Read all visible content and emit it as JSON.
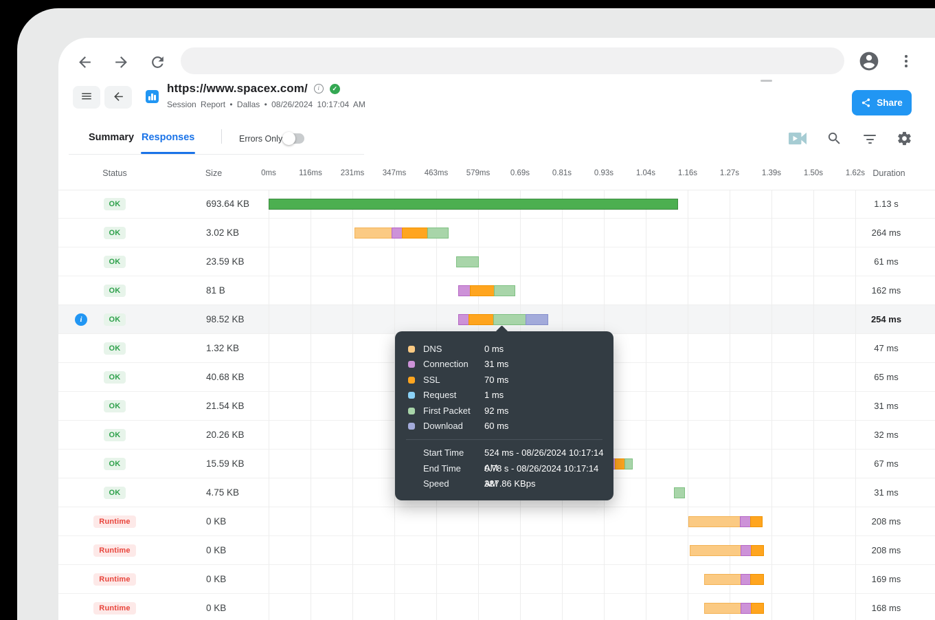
{
  "browser": {
    "address_value": "",
    "icons": [
      "back-arrow-icon",
      "forward-arrow-icon",
      "refresh-icon",
      "avatar-icon",
      "kebab-menu-icon"
    ]
  },
  "header": {
    "url": "https://www.spacex.com/",
    "subtitle": "Session Report • Dallas • 08/26/2024 10:17:04 AM",
    "share_label": "Share",
    "icons": [
      "hamburger-icon",
      "back-arrow-icon",
      "bar-chart-icon",
      "info-icon",
      "verified-check-icon",
      "share-icon"
    ]
  },
  "tabs": {
    "summary": "Summary",
    "responses": "Responses",
    "errors_only": "Errors Only",
    "errors_only_state": "off",
    "toolbar_icons": [
      "video-camera-icon",
      "search-icon",
      "filter-icon",
      "gear-icon"
    ]
  },
  "table": {
    "headers": {
      "status": "Status",
      "size": "Size",
      "duration": "Duration"
    },
    "time_ticks": [
      "0ms",
      "116ms",
      "231ms",
      "347ms",
      "463ms",
      "579ms",
      "0.69s",
      "0.81s",
      "0.93s",
      "1.04s",
      "1.16s",
      "1.27s",
      "1.39s",
      "1.50s",
      "1.62s"
    ],
    "rows": [
      {
        "status": "OK",
        "size": "693.64 KB",
        "duration": "1.13 s",
        "info": false,
        "highlight": false,
        "bar": {
          "start": 391,
          "segments": [
            [
              "content",
              596
            ]
          ]
        }
      },
      {
        "status": "OK",
        "size": "3.02 KB",
        "duration": "264 ms",
        "info": false,
        "highlight": false,
        "bar": {
          "start": 516,
          "segments": [
            [
              "dns",
              55
            ],
            [
              "connection",
              16
            ],
            [
              "ssl",
              38
            ],
            [
              "first_packet",
              31
            ]
          ]
        }
      },
      {
        "status": "OK",
        "size": "23.59 KB",
        "duration": "61 ms",
        "info": false,
        "highlight": false,
        "bar": {
          "start": 664,
          "segments": [
            [
              "first_packet",
              33
            ]
          ]
        }
      },
      {
        "status": "OK",
        "size": "81 B",
        "duration": "162 ms",
        "info": false,
        "highlight": false,
        "bar": {
          "start": 667,
          "segments": [
            [
              "connection",
              18
            ],
            [
              "ssl",
              36
            ],
            [
              "first_packet",
              31
            ]
          ]
        }
      },
      {
        "status": "OK",
        "size": "98.52 KB",
        "duration": "254 ms",
        "info": true,
        "highlight": true,
        "bar": {
          "start": 667,
          "segments": [
            [
              "connection",
              16
            ],
            [
              "ssl",
              37
            ],
            [
              "first_packet",
              48
            ],
            [
              "download",
              33
            ]
          ]
        }
      },
      {
        "status": "OK",
        "size": "1.32 KB",
        "duration": "47 ms",
        "info": false,
        "highlight": false,
        "bar": null
      },
      {
        "status": "OK",
        "size": "40.68 KB",
        "duration": "65 ms",
        "info": false,
        "highlight": false,
        "bar": null
      },
      {
        "status": "OK",
        "size": "21.54 KB",
        "duration": "31 ms",
        "info": false,
        "highlight": false,
        "bar": null
      },
      {
        "status": "OK",
        "size": "20.26 KB",
        "duration": "32 ms",
        "info": false,
        "highlight": false,
        "bar": null
      },
      {
        "status": "OK",
        "size": "15.59 KB",
        "duration": "67 ms",
        "info": false,
        "highlight": false,
        "bar": {
          "start": 889,
          "segments": [
            [
              "connection",
              7
            ],
            [
              "ssl",
              15
            ],
            [
              "first_packet",
              12
            ]
          ]
        }
      },
      {
        "status": "OK",
        "size": "4.75 KB",
        "duration": "31 ms",
        "info": false,
        "highlight": false,
        "bar": {
          "start": 981,
          "segments": [
            [
              "first_packet",
              16
            ]
          ]
        }
      },
      {
        "status": "Runtime",
        "size": "0 KB",
        "duration": "208 ms",
        "info": false,
        "highlight": false,
        "bar": {
          "start": 1002,
          "segments": [
            [
              "dns",
              76
            ],
            [
              "connection",
              16
            ],
            [
              "ssl",
              18
            ]
          ]
        }
      },
      {
        "status": "Runtime",
        "size": "0 KB",
        "duration": "208 ms",
        "info": false,
        "highlight": false,
        "bar": {
          "start": 1004,
          "segments": [
            [
              "dns",
              75
            ],
            [
              "connection",
              16
            ],
            [
              "ssl",
              19
            ]
          ]
        }
      },
      {
        "status": "Runtime",
        "size": "0 KB",
        "duration": "169 ms",
        "info": false,
        "highlight": false,
        "bar": {
          "start": 1025,
          "segments": [
            [
              "dns",
              54
            ],
            [
              "connection",
              15
            ],
            [
              "ssl",
              20
            ]
          ]
        }
      },
      {
        "status": "Runtime",
        "size": "0 KB",
        "duration": "168 ms",
        "info": false,
        "highlight": false,
        "bar": {
          "start": 1025,
          "segments": [
            [
              "dns",
              54
            ],
            [
              "connection",
              16
            ],
            [
              "ssl",
              19
            ]
          ]
        }
      }
    ]
  },
  "tooltip": {
    "phases": [
      {
        "key": "dns",
        "name": "DNS",
        "value": "0 ms"
      },
      {
        "key": "connection",
        "name": "Connection",
        "value": "31 ms"
      },
      {
        "key": "ssl",
        "name": "SSL",
        "value": "70 ms"
      },
      {
        "key": "request",
        "name": "Request",
        "value": "1 ms"
      },
      {
        "key": "first_packet",
        "name": "First Packet",
        "value": "92 ms"
      },
      {
        "key": "download",
        "name": "Download",
        "value": "60 ms"
      }
    ],
    "details": [
      {
        "name": "Start Time",
        "value": "524 ms - 08/26/2024 10:17:14 AM"
      },
      {
        "name": "End Time",
        "value": "0.78 s - 08/26/2024 10:17:14 AM"
      },
      {
        "name": "Speed",
        "value": "387.86 KBps"
      }
    ]
  },
  "colors": {
    "accent_blue": "#2196F3",
    "active_tab_blue": "#1A73E8",
    "verified_green": "#34A853",
    "ok_badge": {
      "bg": "#E7F4EA",
      "text": "#2FA14C"
    },
    "runtime_badge": {
      "bg": "#FDE9E8",
      "text": "#E8453C"
    },
    "tooltip_bg": "#333C43",
    "phases": {
      "dns": {
        "fill": "#FBCA83",
        "border": "#F3B254"
      },
      "connection": {
        "fill": "#CD92D8",
        "border": "#B566C4"
      },
      "ssl": {
        "fill": "#FFA51F",
        "border": "#F09300"
      },
      "request": {
        "fill": "#8BD2F7",
        "border": "#5BBEEF"
      },
      "first_packet": {
        "fill": "#A8D5A9",
        "border": "#7FC082"
      },
      "download": {
        "fill": "#A3ABDB",
        "border": "#8690CC"
      },
      "content": {
        "fill": "#4CAF50",
        "border": "#3D8B40"
      }
    }
  }
}
